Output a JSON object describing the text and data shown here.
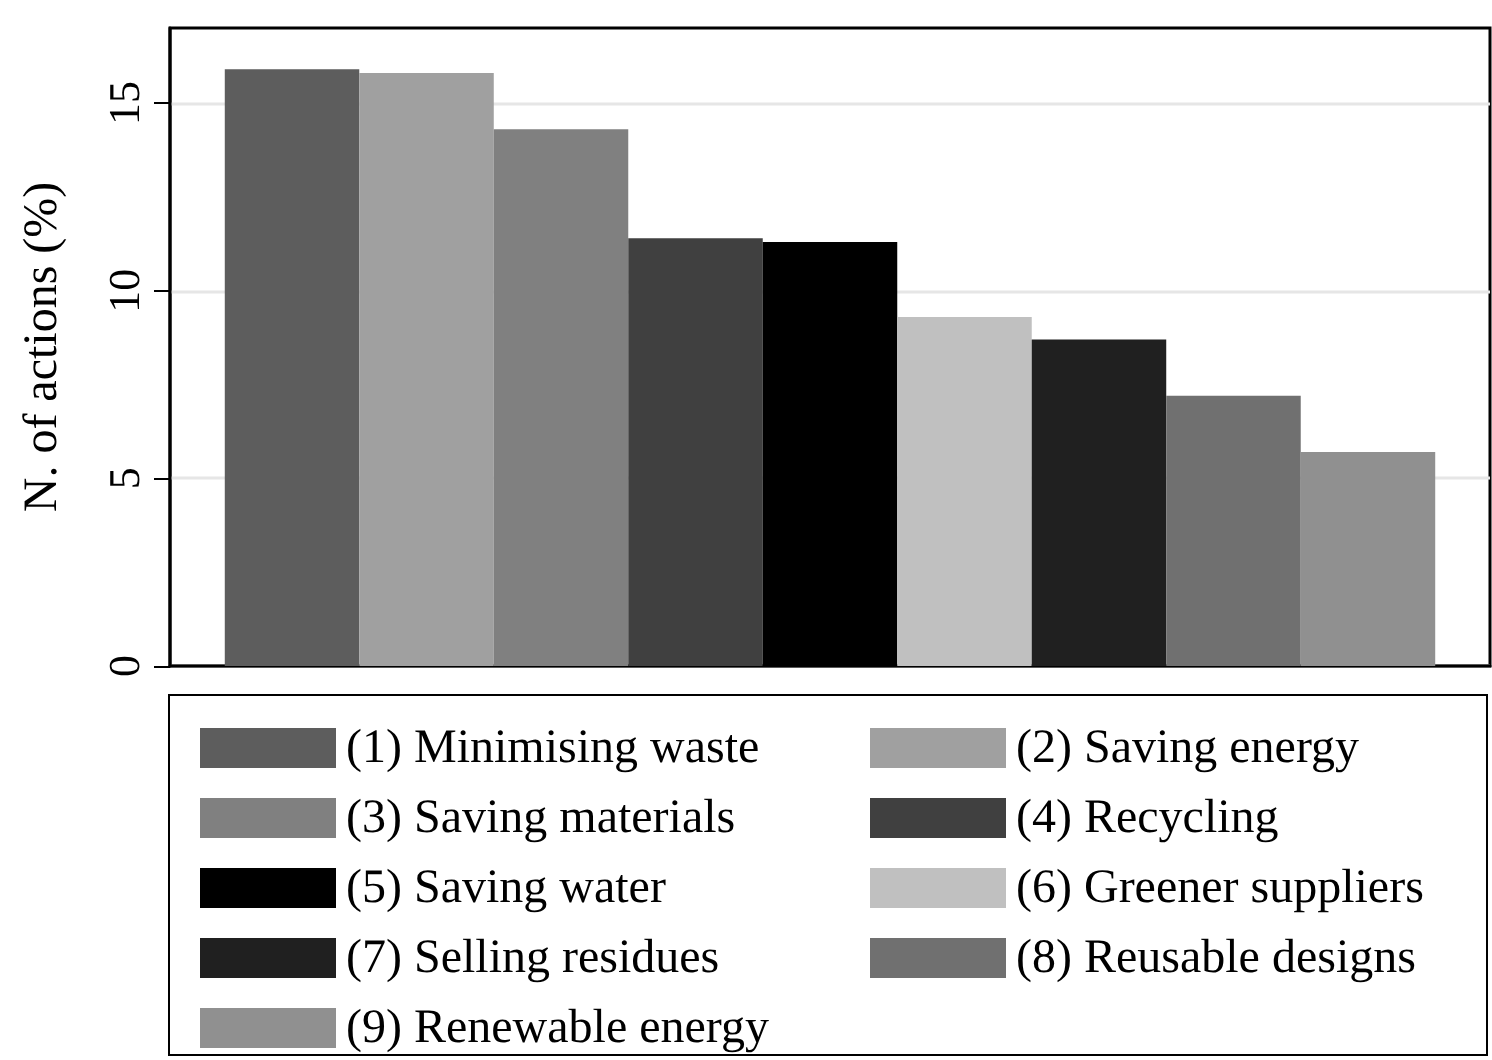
{
  "chart_data": {
    "type": "bar",
    "ylabel": "N. of actions (%)",
    "categories": [
      null
    ],
    "series": [
      {
        "name": "(1) Minimising waste",
        "color": "#5d5d5d",
        "values": [
          15.9
        ]
      },
      {
        "name": "(2) Saving energy",
        "color": "#a0a0a0",
        "values": [
          15.8
        ]
      },
      {
        "name": "(3) Saving materials",
        "color": "#808080",
        "values": [
          14.3
        ]
      },
      {
        "name": "(4) Recycling",
        "color": "#404040",
        "values": [
          11.4
        ]
      },
      {
        "name": "(5) Saving water",
        "color": "#000000",
        "values": [
          11.3
        ]
      },
      {
        "name": "(6) Greener suppliers",
        "color": "#c0c0c0",
        "values": [
          9.3
        ]
      },
      {
        "name": "(7) Selling residues",
        "color": "#202020",
        "values": [
          8.7
        ]
      },
      {
        "name": "(8) Reusable designs",
        "color": "#707070",
        "values": [
          7.2
        ]
      },
      {
        "name": "(9) Renewable energy",
        "color": "#909090",
        "values": [
          5.7
        ]
      }
    ],
    "ylim": [
      0,
      17
    ],
    "yticks": [
      0,
      5,
      10,
      15
    ],
    "grid": "y",
    "legend": "bottom"
  }
}
